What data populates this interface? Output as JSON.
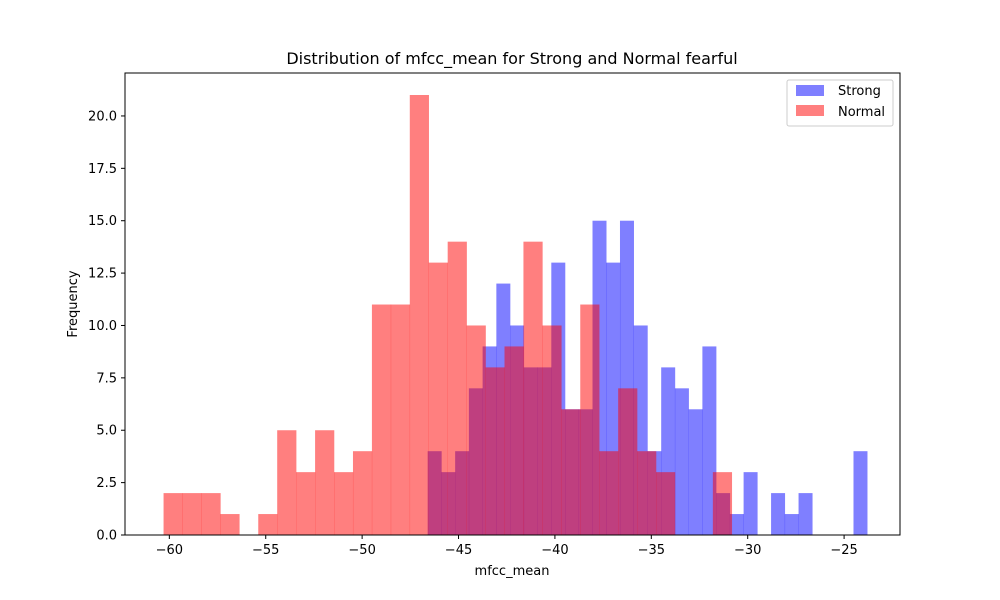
{
  "chart_data": {
    "type": "histogram",
    "title": "Distribution of mfcc_mean for Strong and Normal fearful",
    "xlabel": "mfcc_mean",
    "ylabel": "Frequency",
    "xlim": [
      -62.3,
      -22.1
    ],
    "ylim": [
      0,
      22.05
    ],
    "xticks": [
      -60,
      -55,
      -50,
      -45,
      -40,
      -35,
      -30,
      -25
    ],
    "xtick_labels": [
      "−60",
      "−55",
      "−50",
      "−45",
      "−40",
      "−35",
      "−30",
      "−25"
    ],
    "yticks": [
      0,
      2.5,
      5,
      7.5,
      10,
      12.5,
      15,
      17.5,
      20
    ],
    "ytick_labels": [
      "0.0",
      "2.5",
      "5.0",
      "7.5",
      "10.0",
      "12.5",
      "15.0",
      "17.5",
      "20.0"
    ],
    "legend_position": "top-right",
    "series": [
      {
        "name": "Strong",
        "color": "#0000ff",
        "opacity": 0.5,
        "bin_start": -46.6,
        "bin_width": 0.7125,
        "counts": [
          4,
          3,
          4,
          7,
          9,
          12,
          10,
          8,
          8,
          13,
          6,
          6,
          15,
          13,
          15,
          10,
          4,
          8,
          7,
          6,
          9,
          2,
          1,
          3,
          0,
          2,
          1,
          2,
          0,
          0,
          0,
          4
        ]
      },
      {
        "name": "Normal",
        "color": "#ff0000",
        "opacity": 0.5,
        "bin_start": -60.3,
        "bin_width": 0.9825,
        "counts": [
          2,
          2,
          2,
          1,
          0,
          1,
          5,
          3,
          5,
          3,
          4,
          11,
          11,
          21,
          13,
          14,
          10,
          8,
          9,
          14,
          10,
          6,
          11,
          4,
          7,
          4,
          3,
          0,
          0,
          3
        ]
      }
    ]
  }
}
